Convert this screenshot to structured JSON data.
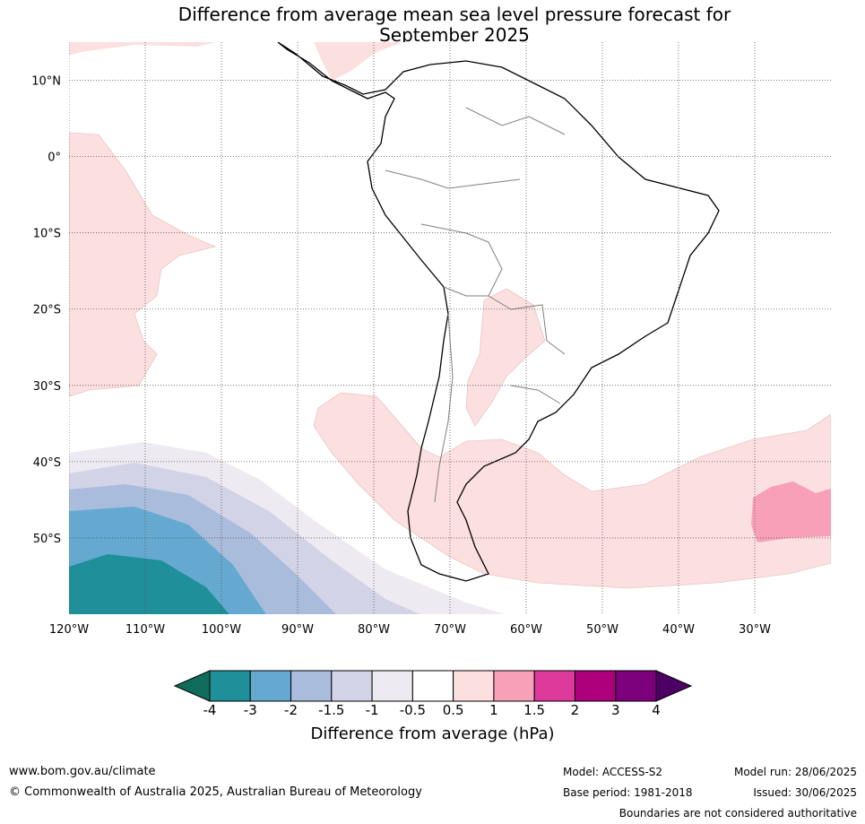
{
  "title": {
    "line1": "Difference from average mean sea level pressure forecast for",
    "line2": "September 2025"
  },
  "map": {
    "region": "South America and surrounding oceans",
    "projection": "equirectangular",
    "lon_range": [
      -120,
      -20
    ],
    "lat_range": [
      -60,
      15
    ],
    "gridlines": true,
    "lat_ticks": [
      {
        "label": "10°N",
        "value": 10
      },
      {
        "label": "0°",
        "value": 0
      },
      {
        "label": "10°S",
        "value": -10
      },
      {
        "label": "20°S",
        "value": -20
      },
      {
        "label": "30°S",
        "value": -30
      },
      {
        "label": "40°S",
        "value": -40
      },
      {
        "label": "50°S",
        "value": -50
      }
    ],
    "lon_ticks": [
      {
        "label": "120°W",
        "value": -120
      },
      {
        "label": "110°W",
        "value": -110
      },
      {
        "label": "100°W",
        "value": -100
      },
      {
        "label": "90°W",
        "value": -90
      },
      {
        "label": "80°W",
        "value": -80
      },
      {
        "label": "70°W",
        "value": -70
      },
      {
        "label": "60°W",
        "value": -60
      },
      {
        "label": "50°W",
        "value": -50
      },
      {
        "label": "40°W",
        "value": -40
      },
      {
        "label": "30°W",
        "value": -30
      }
    ],
    "anomaly_regions": [
      {
        "name": "eastern-pacific-positive",
        "category": "0.5 to 1",
        "color": "#fcdfdf"
      },
      {
        "name": "paraguay-bolivia-positive",
        "category": "0.5 to 1",
        "color": "#fcdfdf"
      },
      {
        "name": "southern-cone-positive",
        "category": "0.5 to 1",
        "color": "#fcdfdf"
      },
      {
        "name": "south-atlantic-positive-core",
        "category": "1 to 1.5",
        "color": "#f7a0b8"
      },
      {
        "name": "southeast-pacific-negative",
        "category": "-4 to -0.5",
        "colors": [
          "#1f8f99",
          "#66a9d0",
          "#a9bcdc",
          "#d2d3e6",
          "#eeeaf2"
        ]
      }
    ]
  },
  "colorbar": {
    "label": "Difference from average (hPa)",
    "ticks": [
      "-4",
      "-3",
      "-2",
      "-1.5",
      "-1",
      "-0.5",
      "0.5",
      "1",
      "1.5",
      "2",
      "3",
      "4"
    ],
    "under_color": "#0f6b5a",
    "over_color": "#4c0063",
    "colors": [
      "#1f8f99",
      "#66a9d0",
      "#a9bcdc",
      "#d2d3e6",
      "#eeeaf2",
      "#ffffff",
      "#fcdfdf",
      "#f7a0b8",
      "#de3a9c",
      "#ac007c",
      "#7c0079"
    ]
  },
  "footer": {
    "url": "www.bom.gov.au/climate",
    "copyright": "© Commonwealth of Australia 2025, Australian Bureau of Meteorology",
    "model": "Model: ACCESS-S2",
    "base_period": "Base period: 1981-2018",
    "model_run": "Model run: 28/06/2025",
    "issued": "Issued: 30/06/2025",
    "disclaimer": "Boundaries are not considered authoritative"
  }
}
